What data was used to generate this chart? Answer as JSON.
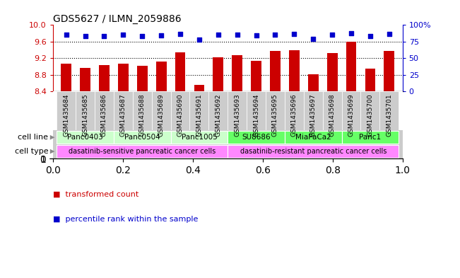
{
  "title": "GDS5627 / ILMN_2059886",
  "samples": [
    "GSM1435684",
    "GSM1435685",
    "GSM1435686",
    "GSM1435687",
    "GSM1435688",
    "GSM1435689",
    "GSM1435690",
    "GSM1435691",
    "GSM1435692",
    "GSM1435693",
    "GSM1435694",
    "GSM1435695",
    "GSM1435696",
    "GSM1435697",
    "GSM1435698",
    "GSM1435699",
    "GSM1435700",
    "GSM1435701"
  ],
  "transformed_count": [
    9.07,
    8.96,
    9.03,
    9.07,
    9.02,
    9.12,
    9.35,
    8.55,
    9.22,
    9.27,
    9.13,
    9.37,
    9.4,
    8.82,
    9.33,
    9.6,
    8.95,
    9.38
  ],
  "percentile_rank": [
    85,
    83,
    83,
    85,
    83,
    84,
    87,
    78,
    86,
    86,
    84,
    86,
    87,
    79,
    86,
    88,
    83,
    87
  ],
  "cell_lines": [
    {
      "name": "Panc0403",
      "start": 0,
      "end": 2,
      "color": "#ccffcc"
    },
    {
      "name": "Panc0504",
      "start": 3,
      "end": 5,
      "color": "#ccffcc"
    },
    {
      "name": "Panc1005",
      "start": 6,
      "end": 8,
      "color": "#ccffcc"
    },
    {
      "name": "SU8686",
      "start": 9,
      "end": 11,
      "color": "#66ff66"
    },
    {
      "name": "MiaPaCa2",
      "start": 12,
      "end": 14,
      "color": "#66ff66"
    },
    {
      "name": "Panc1",
      "start": 15,
      "end": 17,
      "color": "#66ff66"
    }
  ],
  "cell_types": [
    {
      "name": "dasatinib-sensitive pancreatic cancer cells",
      "start": 0,
      "end": 8,
      "color": "#ff88ff"
    },
    {
      "name": "dasatinib-resistant pancreatic cancer cells",
      "start": 9,
      "end": 17,
      "color": "#ff88ff"
    }
  ],
  "ylim": [
    8.4,
    10.0
  ],
  "yticks_left": [
    8.4,
    8.8,
    9.2,
    9.6,
    10.0
  ],
  "yticks_right": [
    0,
    25,
    50,
    75,
    100
  ],
  "bar_color": "#cc0000",
  "dot_color": "#0000cc",
  "background_color": "#ffffff",
  "xtick_bg_color": "#cccccc",
  "cell_line_label_color": "#888888",
  "legend_items": [
    "transformed count",
    "percentile rank within the sample"
  ]
}
